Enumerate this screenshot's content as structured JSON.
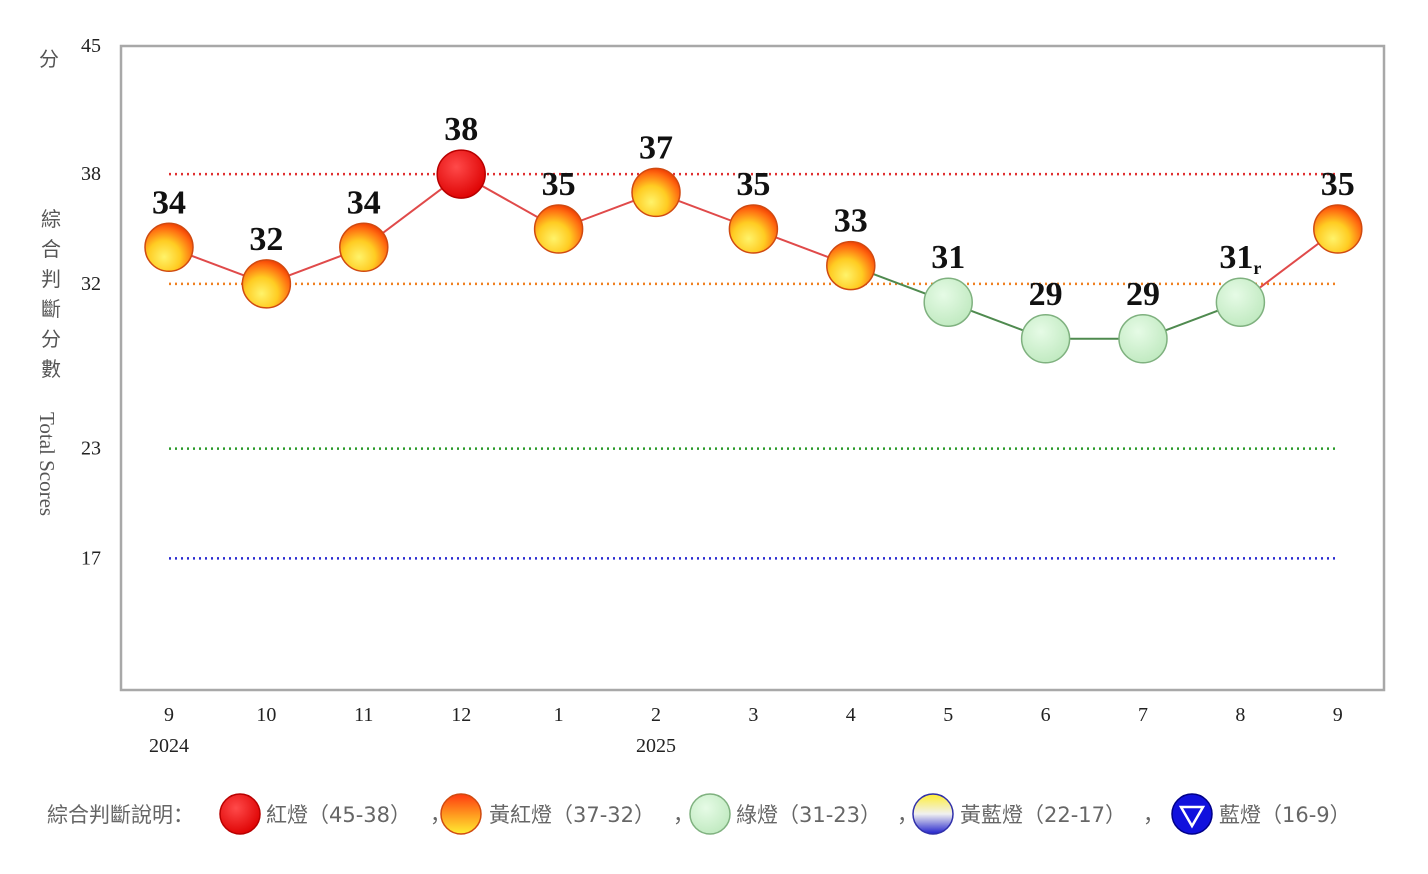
{
  "chart_data": {
    "type": "line",
    "title": "",
    "ylabel_zh": "綜合判斷分數",
    "ylabel_en": "Total Scores",
    "yunit": "分",
    "ylim": [
      9,
      45
    ],
    "ytick_labels": [
      "45",
      "38",
      "32",
      "23",
      "17"
    ],
    "reference_lines": [
      {
        "value": 38,
        "color": "#e03030"
      },
      {
        "value": 32,
        "color": "#f08020"
      },
      {
        "value": 23,
        "color": "#2a9a2a"
      },
      {
        "value": 17,
        "color": "#2a2ad0"
      }
    ],
    "categories": [
      "9",
      "10",
      "11",
      "12",
      "1",
      "2",
      "3",
      "4",
      "5",
      "6",
      "7",
      "8",
      "9"
    ],
    "year_labels": [
      {
        "index": 0,
        "text": "2024"
      },
      {
        "index": 5,
        "text": "2025"
      }
    ],
    "values": [
      34,
      32,
      34,
      38,
      35,
      37,
      35,
      33,
      31,
      29,
      29,
      31,
      35
    ],
    "value_labels": [
      "34",
      "32",
      "34",
      "38",
      "35",
      "37",
      "35",
      "33",
      "31",
      "29",
      "29",
      "31",
      "35"
    ],
    "revised_suffix": {
      "index": 11,
      "text": "r"
    },
    "signals": [
      "yellow-red",
      "yellow-red",
      "yellow-red",
      "red",
      "yellow-red",
      "yellow-red",
      "yellow-red",
      "yellow-red",
      "green",
      "green",
      "green",
      "green",
      "yellow-red"
    ],
    "grid": false
  },
  "legend": {
    "title": "綜合判斷說明：",
    "separator": "，",
    "items": [
      {
        "label": "紅燈（45-38）",
        "signal": "red"
      },
      {
        "label": "黃紅燈（37-32）",
        "signal": "yellow-red"
      },
      {
        "label": "綠燈（31-23）",
        "signal": "green"
      },
      {
        "label": "黃藍燈（22-17）",
        "signal": "yellow-blue"
      },
      {
        "label": "藍燈（16-9）",
        "signal": "blue"
      }
    ]
  },
  "colors": {
    "red": "#ee1111",
    "yellow_red_top": "#ff3a10",
    "yellow_red_bottom": "#ffee33",
    "green": "#cdf2cd",
    "green_stroke": "#7fb17f",
    "blue": "#1111dd",
    "line_red": "#e04a4a",
    "line_green": "#4f8a4f",
    "frame": "#a8a8a8"
  }
}
